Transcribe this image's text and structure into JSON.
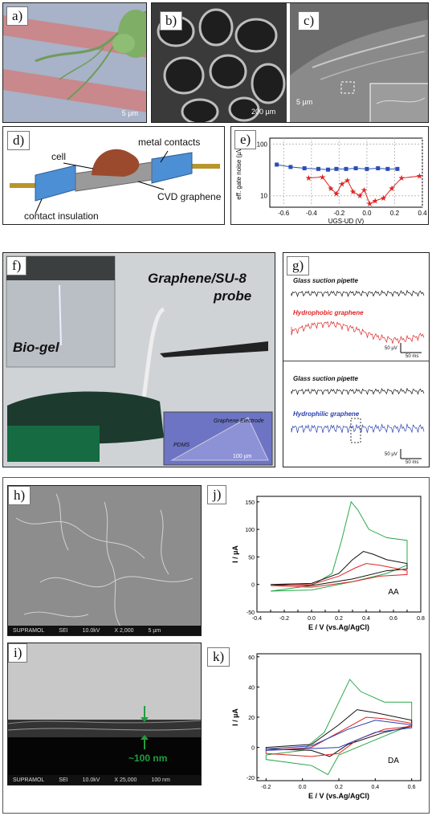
{
  "labels": {
    "a": "a)",
    "b": "b)",
    "c": "c)",
    "d": "d)",
    "e": "e)",
    "f": "f)",
    "g": "g)",
    "h": "h)",
    "i": "i)",
    "j": "j)",
    "k": "k)"
  },
  "panel_a": {
    "scale": "5 µm"
  },
  "panel_b": {
    "scale": "200 µm"
  },
  "panel_c": {
    "scale": "5 µm"
  },
  "panel_d": {
    "cell": "cell",
    "metal_contacts": "metal contacts",
    "cvd_graphene": "CVD graphene",
    "contact_insulation": "contact insulation"
  },
  "panel_f": {
    "title_line1": "Graphene/SU-8",
    "title_line2": "probe",
    "biogel": "Bio-gel",
    "electrode": "Graphene Electrode",
    "pdms": "PDMS",
    "scale": "100 µm"
  },
  "panel_g": {
    "glass1": "Glass suction pipette",
    "hydrophobic": "Hydrophobic graphene",
    "glass2": "Glass suction pipette",
    "hydrophilic": "Hydrophilic graphene",
    "scale_v1": "50 µV",
    "scale_t1": "50 ms",
    "scale_v2": "50 µV",
    "scale_t2": "50 ms"
  },
  "panel_h": {
    "sem_bar": [
      "SUPRAMOL",
      "SEI",
      "10.0kV",
      "X 2,000",
      "5 µm"
    ]
  },
  "panel_i": {
    "sem_bar": [
      "SUPRAMOL",
      "SEI",
      "10.0kV",
      "X 25,000",
      "100 nm"
    ],
    "thickness": "~100 nm"
  },
  "chart_data": [
    {
      "id": "e",
      "type": "line",
      "ylabel": "eff. gate noise (µV)",
      "xlabel": "UGS-UD (V)",
      "yscale": "log",
      "xlim": [
        -0.7,
        0.4
      ],
      "ylim": [
        6,
        130
      ],
      "xticks": [
        "-0.6",
        "-0.4",
        "-0.2",
        "0.0",
        "0.2",
        "0.4"
      ],
      "yticks": [
        "10",
        "100"
      ],
      "series": [
        {
          "color": "#2a4fb5",
          "marker": "square",
          "x": [
            -0.65,
            -0.55,
            -0.45,
            -0.35,
            -0.28,
            -0.22,
            -0.15,
            -0.08,
            0.0,
            0.08,
            0.15,
            0.22
          ],
          "y": [
            40,
            36,
            34,
            33,
            32,
            33,
            33,
            34,
            33,
            34,
            33,
            33
          ]
        },
        {
          "color": "#e02424",
          "marker": "star",
          "x": [
            -0.42,
            -0.32,
            -0.26,
            -0.22,
            -0.18,
            -0.14,
            -0.1,
            -0.05,
            -0.02,
            0.02,
            0.06,
            0.12,
            0.18,
            0.25,
            0.38
          ],
          "y": [
            22,
            23,
            14,
            11,
            17,
            20,
            12,
            10,
            13,
            7,
            8,
            9,
            14,
            22,
            24
          ]
        }
      ]
    },
    {
      "id": "j",
      "type": "line",
      "xlabel": "E / V (vs.Ag/AgCl)",
      "ylabel": "I / µA",
      "annotation": "AA",
      "xlim": [
        -0.4,
        0.8
      ],
      "ylim": [
        -50,
        160
      ],
      "xticks": [
        "-0.4",
        "-0.3",
        "-0.2",
        "-0.1",
        "0.0",
        "0.1",
        "0.2",
        "0.3",
        "0.4",
        "0.5",
        "0.6",
        "0.7",
        "0.8"
      ],
      "yticks": [
        "-50",
        "0",
        "50",
        "100",
        "150"
      ]
    },
    {
      "id": "k",
      "type": "line",
      "xlabel": "E / V (vs.Ag/AgCl)",
      "ylabel": "I / µA",
      "annotation": "DA",
      "xlim": [
        -0.25,
        0.65
      ],
      "ylim": [
        -22,
        62
      ],
      "xticks": [
        "-0.2",
        "0.0",
        "0.2",
        "0.4",
        "0.6"
      ],
      "yticks": [
        "-20",
        "0",
        "20",
        "40",
        "60"
      ]
    }
  ]
}
